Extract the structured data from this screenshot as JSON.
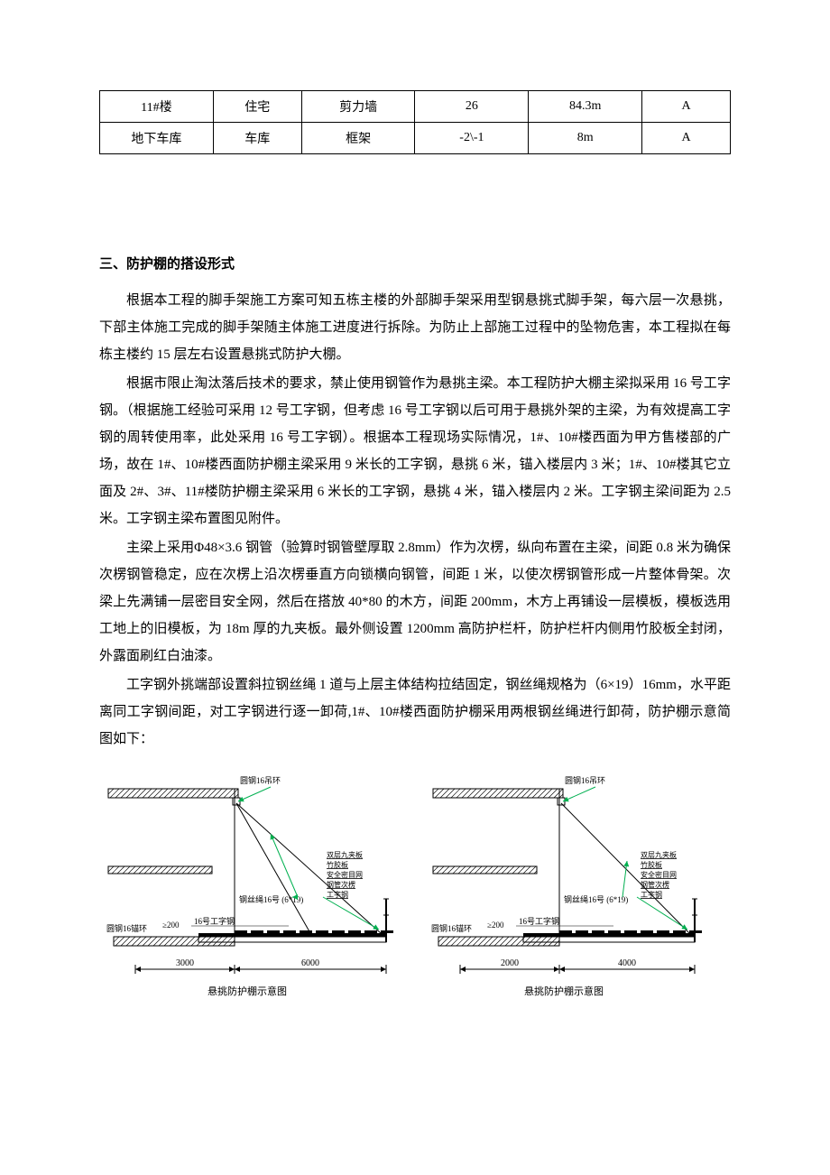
{
  "table": {
    "rows": [
      [
        "11#楼",
        "住宅",
        "剪力墙",
        "26",
        "84.3m",
        "A"
      ],
      [
        "地下车库",
        "车库",
        "框架",
        "-2\\-1",
        "8m",
        "A"
      ]
    ],
    "col_widths_pct": [
      18,
      14,
      18,
      18,
      18,
      14
    ]
  },
  "section_title": "三、防护棚的搭设形式",
  "paragraphs": [
    "根据本工程的脚手架施工方案可知五栋主楼的外部脚手架采用型钢悬挑式脚手架，每六层一次悬挑，下部主体施工完成的脚手架随主体施工进度进行拆除。为防止上部施工过程中的坠物危害，本工程拟在每栋主楼约 15 层左右设置悬挑式防护大棚。",
    "根据市限止淘汰落后技术的要求，禁止使用钢管作为悬挑主梁。本工程防护大棚主梁拟采用 16 号工字钢。（根据施工经验可采用 12 号工字钢，但考虑 16 号工字钢以后可用于悬挑外架的主梁，为有效提高工字钢的周转使用率，此处采用 16 号工字钢）。根据本工程现场实际情况，1#、10#楼西面为甲方售楼部的广场，故在 1#、10#楼西面防护棚主梁采用 9 米长的工字钢，悬挑 6 米，锚入楼层内 3 米；1#、10#楼其它立面及 2#、3#、11#楼防护棚主梁采用 6 米长的工字钢，悬挑 4 米，锚入楼层内 2 米。工字钢主梁间距为 2.5 米。工字钢主梁布置图见附件。",
    "主梁上采用Φ48×3.6 钢管（验算时钢管壁厚取 2.8mm）作为次楞，纵向布置在主梁，间距 0.8 米为确保次楞钢管稳定，应在次楞上沿次楞垂直方向锁横向钢管，间距 1 米，以使次楞钢管形成一片整体骨架。次梁上先满铺一层密目安全网，然后在搭放 40*80 的木方，间距 200mm，木方上再铺设一层模板，模板选用工地上的旧模板，为 18m 厚的九夹板。最外侧设置 1200mm 高防护栏杆，防护栏杆内侧用竹胶板全封闭，外露面刷红白油漆。",
    "工字钢外挑端部设置斜拉钢丝绳 1 道与上层主体结构拉结固定，钢丝绳规格为（6×19）16mm，水平距离同工字钢间距，对工字钢进行逐一卸荷,1#、10#楼西面防护棚采用两根钢丝绳进行卸荷，防护棚示意简图如下："
  ],
  "diagram": {
    "left": {
      "top_label": "圆钢16吊环",
      "wire_label": "钢丝绳16号 (6*19)",
      "beam_label": "16号工字钢",
      "anchor_label": "圆钢16锚环",
      "dim_small": "≥200",
      "dim_anchor": "3000",
      "dim_cantilever": "6000",
      "caption": "悬挑防护棚示意图",
      "stack": [
        "双层九夹板",
        "竹胶板",
        "安全密目网",
        "钢管次楞",
        "工字钢"
      ]
    },
    "right": {
      "top_label": "圆钢16吊环",
      "wire_label": "钢丝绳16号 (6*19)",
      "beam_label": "16号工字钢",
      "anchor_label": "圆钢16锚环",
      "dim_small": "≥200",
      "dim_anchor": "2000",
      "dim_cantilever": "4000",
      "caption": "悬挑防护棚示意图",
      "stack": [
        "双层九夹板",
        "竹胶板",
        "安全密目网",
        "钢管次楞",
        "工字钢"
      ]
    },
    "colors": {
      "line": "#000000",
      "arrow": "#00b050",
      "hatch": "#000000",
      "text": "#000000"
    },
    "font_size_label": 9,
    "font_size_dim": 10,
    "font_size_caption": 11
  }
}
